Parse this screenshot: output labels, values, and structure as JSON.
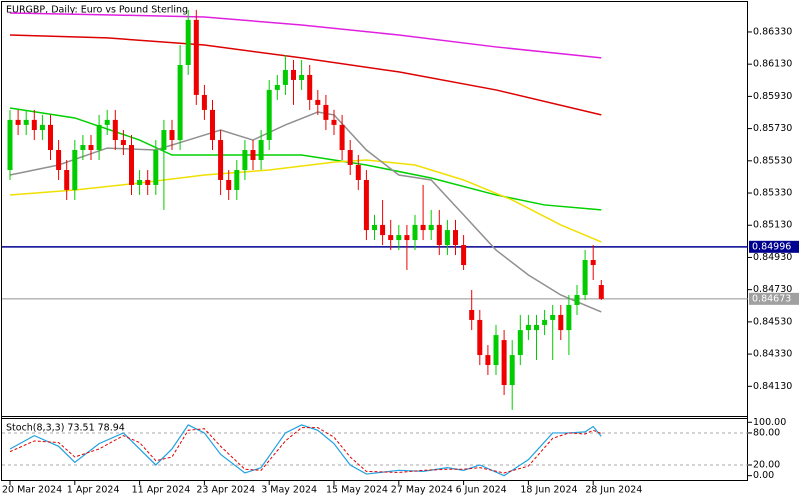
{
  "chart_data": {
    "type": "candlestick",
    "title": "EURGBP, Daily: Euro vs Pound Sterling",
    "categories": [
      "20 Mar 2024",
      null,
      null,
      null,
      null,
      null,
      null,
      null,
      "1 Apr 2024",
      null,
      null,
      null,
      null,
      null,
      null,
      null,
      "11 Apr 2024",
      null,
      null,
      null,
      null,
      null,
      null,
      null,
      "23 Apr 2024",
      null,
      null,
      null,
      null,
      null,
      null,
      null,
      "3 May 2024",
      null,
      null,
      null,
      null,
      null,
      null,
      null,
      "15 May 2024",
      null,
      null,
      null,
      null,
      null,
      null,
      null,
      "27 May 2024",
      null,
      null,
      null,
      null,
      null,
      null,
      null,
      "6 Jun 2024",
      null,
      null,
      null,
      null,
      null,
      null,
      null,
      "18 Jun 2024",
      null,
      null,
      null,
      null,
      null,
      null,
      null,
      "28 Jun 2024",
      null
    ],
    "open": [
      0.85473,
      0.85784,
      0.85753,
      0.85784,
      0.85721,
      0.85753,
      0.85597,
      0.85473,
      0.85349,
      0.85597,
      0.85628,
      0.85597,
      0.85753,
      0.85784,
      0.85659,
      0.85628,
      0.8538,
      0.85411,
      0.8538,
      0.85597,
      0.85721,
      0.85659,
      0.86125,
      0.86405,
      0.85939,
      0.85846,
      0.85659,
      0.85411,
      0.85349,
      0.85473,
      0.85597,
      0.85535,
      0.85659,
      0.8597,
      0.86001,
      0.86094,
      0.86032,
      0.86063,
      0.85908,
      0.85877,
      0.85784,
      0.85753,
      0.85597,
      0.85504,
      0.85411,
      0.851,
      0.85132,
      0.85069,
      0.85038,
      0.85069,
      0.85038,
      0.85132,
      0.851,
      0.85132,
      0.85007,
      0.851,
      0.85007,
      0.84604,
      0.84542,
      0.84324,
      0.84262,
      0.84417,
      0.84138,
      0.84324,
      0.84479,
      0.84479,
      0.84511,
      0.84542,
      0.84573,
      0.84479,
      0.84635,
      0.84697,
      0.84914,
      0.84759
    ],
    "high": [
      0.85846,
      0.85846,
      0.85846,
      0.85846,
      0.85815,
      0.85815,
      0.85659,
      0.85535,
      0.85659,
      0.8569,
      0.8569,
      0.85815,
      0.85846,
      0.85846,
      0.85721,
      0.8569,
      0.85473,
      0.85473,
      0.85659,
      0.85784,
      0.85784,
      0.86249,
      0.86467,
      0.86467,
      0.86001,
      0.85908,
      0.85721,
      0.85473,
      0.85535,
      0.85659,
      0.85659,
      0.85721,
      0.86032,
      0.86063,
      0.86187,
      0.86156,
      0.86156,
      0.86125,
      0.8597,
      0.85939,
      0.85846,
      0.85815,
      0.85659,
      0.85566,
      0.85473,
      0.85194,
      0.85287,
      0.85163,
      0.85132,
      0.85132,
      0.85194,
      0.8538,
      0.85225,
      0.85225,
      0.85163,
      0.85163,
      0.85069,
      0.84728,
      0.84604,
      0.84386,
      0.84511,
      0.84479,
      0.84417,
      0.84573,
      0.84573,
      0.84573,
      0.84604,
      0.84635,
      0.84635,
      0.84697,
      0.84759,
      0.84976,
      0.85007,
      0.8479
    ],
    "low": [
      0.85411,
      0.8569,
      0.8569,
      0.85659,
      0.85659,
      0.85535,
      0.85411,
      0.85287,
      0.85287,
      0.85535,
      0.85535,
      0.85535,
      0.8569,
      0.85597,
      0.85566,
      0.85318,
      0.85318,
      0.85318,
      0.85318,
      0.85225,
      0.85597,
      0.85597,
      0.86063,
      0.85877,
      0.85784,
      0.85597,
      0.85318,
      0.85287,
      0.85287,
      0.85411,
      0.85473,
      0.85473,
      0.85597,
      0.85908,
      0.85939,
      0.85877,
      0.8597,
      0.85846,
      0.85815,
      0.85721,
      0.8569,
      0.85535,
      0.85442,
      0.85349,
      0.85038,
      0.85038,
      0.85007,
      0.84976,
      0.84976,
      0.84852,
      0.84976,
      0.85038,
      0.85038,
      0.84945,
      0.84945,
      0.84945,
      0.84852,
      0.84479,
      0.84262,
      0.842,
      0.842,
      0.84076,
      0.83983,
      0.84262,
      0.84417,
      0.84293,
      0.84448,
      0.84293,
      0.84417,
      0.84324,
      0.84573,
      0.84666,
      0.8479,
      0.84666
    ],
    "close": [
      0.85784,
      0.85753,
      0.85784,
      0.85721,
      0.85753,
      0.85597,
      0.85473,
      0.85349,
      0.85597,
      0.85628,
      0.85597,
      0.85753,
      0.85784,
      0.85659,
      0.85628,
      0.8538,
      0.85411,
      0.8538,
      0.85597,
      0.85721,
      0.85659,
      0.86125,
      0.86405,
      0.85939,
      0.85846,
      0.85659,
      0.85411,
      0.85349,
      0.85473,
      0.85597,
      0.85535,
      0.85659,
      0.8597,
      0.86001,
      0.86094,
      0.86032,
      0.86063,
      0.85908,
      0.85877,
      0.85784,
      0.85753,
      0.85597,
      0.85504,
      0.85411,
      0.851,
      0.85132,
      0.85069,
      0.85038,
      0.85069,
      0.85038,
      0.85132,
      0.851,
      0.85132,
      0.85007,
      0.851,
      0.85007,
      0.84883,
      0.84542,
      0.84324,
      0.84262,
      0.84448,
      0.84138,
      0.84324,
      0.84479,
      0.84511,
      0.84511,
      0.84542,
      0.84573,
      0.84479,
      0.84635,
      0.84697,
      0.84914,
      0.84883,
      0.84673
    ],
    "up_color": "#00cc00",
    "down_color": "#ee0000",
    "ylim": [
      0.83958,
      0.86516
    ],
    "yticks": [
      {
        "value": 0.8633,
        "label": "0.86330"
      },
      {
        "value": 0.8613,
        "label": "0.86130"
      },
      {
        "value": 0.8593,
        "label": "0.85930"
      },
      {
        "value": 0.8573,
        "label": "0.85730"
      },
      {
        "value": 0.8553,
        "label": "0.85530"
      },
      {
        "value": 0.8533,
        "label": "0.85330"
      },
      {
        "value": 0.8513,
        "label": "0.85130"
      },
      {
        "value": 0.8493,
        "label": "0.84930"
      },
      {
        "value": 0.8473,
        "label": "0.84730"
      },
      {
        "value": 0.8453,
        "label": "0.84530"
      },
      {
        "value": 0.8433,
        "label": "0.84330"
      },
      {
        "value": 0.8413,
        "label": "0.84130"
      }
    ],
    "overlays": [
      {
        "color": "#e020e0",
        "x": [
          0,
          12,
          24,
          36,
          48,
          60,
          73
        ],
        "values": [
          0.86448,
          0.86436,
          0.86423,
          0.86373,
          0.86311,
          0.86237,
          0.86169
        ]
      },
      {
        "color": "#dd0000",
        "x": [
          0,
          12,
          24,
          36,
          48,
          60,
          73
        ],
        "values": [
          0.86311,
          0.86293,
          0.86249,
          0.86169,
          0.86082,
          0.8597,
          0.85815
        ]
      },
      {
        "color": "#00d000",
        "x": [
          0,
          8,
          16,
          20,
          28,
          36,
          44,
          52,
          60,
          66,
          73
        ],
        "values": [
          0.85858,
          0.85796,
          0.85659,
          0.85566,
          0.85566,
          0.85566,
          0.85504,
          0.85423,
          0.85318,
          0.85256,
          0.85225
        ]
      },
      {
        "color": "#f0e000",
        "x": [
          0,
          8,
          16,
          24,
          32,
          40,
          44,
          50,
          56,
          62,
          68,
          73
        ],
        "values": [
          0.85318,
          0.85349,
          0.85392,
          0.85442,
          0.85473,
          0.85522,
          0.85535,
          0.85504,
          0.85411,
          0.85287,
          0.85132,
          0.85026
        ]
      },
      {
        "color": "#909090",
        "x": [
          0,
          6,
          12,
          18,
          22,
          26,
          30,
          34,
          38,
          40,
          44,
          48,
          52,
          56,
          60,
          64,
          68,
          73
        ],
        "values": [
          0.85442,
          0.85504,
          0.85609,
          0.85597,
          0.85659,
          0.85721,
          0.85659,
          0.85753,
          0.85833,
          0.85815,
          0.85597,
          0.85442,
          0.85411,
          0.85194,
          0.84976,
          0.84821,
          0.84697,
          0.84592
        ]
      }
    ],
    "hlines": [
      {
        "value": 0.84996,
        "color": "#000090"
      },
      {
        "value": 0.84673,
        "color": "#909090"
      }
    ],
    "stochastic": {
      "label": "Stoch(8,3,3) 73.51 78.94",
      "ylim": [
        -10,
        108
      ],
      "yticks": [
        {
          "value": 100,
          "label": "100.00"
        },
        {
          "value": 80,
          "label": "80.00"
        },
        {
          "value": 20,
          "label": "20.00"
        },
        {
          "value": 0,
          "label": "0.00"
        }
      ],
      "levels": [
        80,
        20
      ],
      "main": {
        "color": "#20a0e0",
        "x": [
          0,
          3,
          6,
          8,
          11,
          14,
          16,
          18,
          20,
          22,
          24,
          26,
          29,
          31,
          34,
          36,
          38,
          40,
          42,
          44,
          48,
          51,
          54,
          56,
          58,
          61,
          64,
          67,
          69,
          71,
          72,
          73
        ],
        "values": [
          50,
          75,
          55,
          25,
          60,
          80,
          50,
          20,
          50,
          95,
          80,
          40,
          5,
          15,
          80,
          95,
          85,
          60,
          20,
          3,
          10,
          8,
          15,
          10,
          20,
          0,
          30,
          80,
          80,
          82,
          92,
          73.51
        ]
      },
      "signal": {
        "color": "#e00000",
        "x": [
          0,
          3,
          6,
          8,
          11,
          14,
          16,
          18,
          20,
          22,
          24,
          26,
          29,
          31,
          34,
          36,
          38,
          40,
          42,
          44,
          48,
          51,
          54,
          56,
          58,
          61,
          64,
          67,
          69,
          71,
          72,
          73
        ],
        "values": [
          45,
          65,
          62,
          35,
          50,
          75,
          62,
          28,
          35,
          85,
          88,
          55,
          12,
          10,
          65,
          90,
          90,
          72,
          35,
          8,
          6,
          10,
          12,
          12,
          15,
          5,
          18,
          70,
          80,
          78,
          85,
          78.94
        ]
      }
    }
  }
}
